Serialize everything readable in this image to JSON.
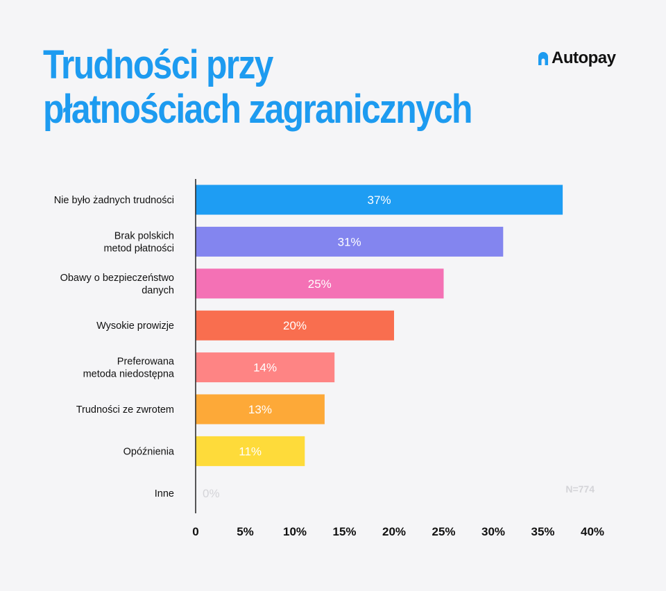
{
  "title_lines": [
    "Trudności przy",
    "płatnościach zagranicznych"
  ],
  "logo": {
    "text": "Autopay",
    "icon": "autopay-logo-icon",
    "color": "#1d9bf0"
  },
  "sample_note": "N=774",
  "chart_data": {
    "type": "bar",
    "orientation": "horizontal",
    "title": "Trudności przy płatnościach zagranicznych",
    "categories": [
      [
        "Nie było żadnych trudności"
      ],
      [
        "Brak polskich",
        "metod płatności"
      ],
      [
        "Obawy o bezpieczeństwo",
        "danych"
      ],
      [
        "Wysokie prowizje"
      ],
      [
        "Preferowana",
        "metoda niedostępna"
      ],
      [
        "Trudności ze zwrotem"
      ],
      [
        "Opóźnienia"
      ],
      [
        "Inne"
      ]
    ],
    "values": [
      37,
      31,
      25,
      20,
      14,
      13,
      11,
      0
    ],
    "value_labels": [
      "37%",
      "31%",
      "25%",
      "20%",
      "14%",
      "13%",
      "11%",
      "0%"
    ],
    "colors": [
      "#1e9df3",
      "#8385ef",
      "#f471b5",
      "#f96e4f",
      "#fe8484",
      "#fda938",
      "#fedb3a",
      "#cccccc"
    ],
    "xlim": [
      0,
      40
    ],
    "ticks": [
      0,
      5,
      10,
      15,
      20,
      25,
      30,
      35,
      40
    ],
    "tick_labels": [
      "0",
      "5%",
      "10%",
      "15%",
      "20%",
      "25%",
      "30%",
      "35%",
      "40%"
    ],
    "grid": false,
    "legend": "none"
  }
}
